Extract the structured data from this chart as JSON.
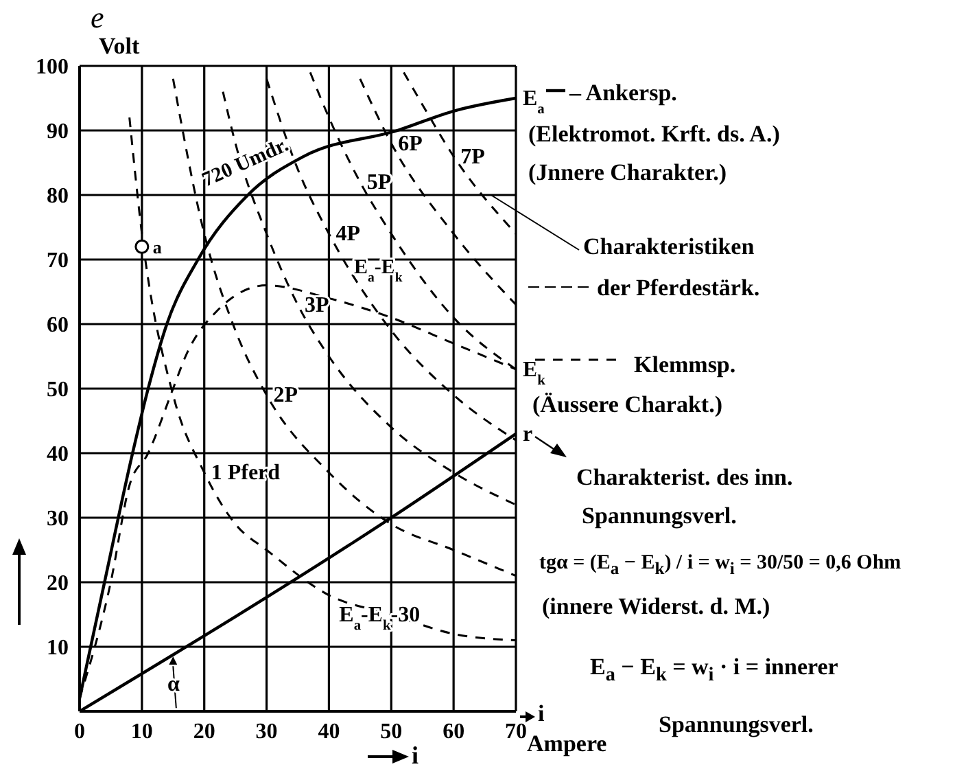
{
  "chart_data": {
    "type": "line",
    "xlabel": "i",
    "ylabel": "e",
    "xlim": [
      0,
      70
    ],
    "ylim": [
      0,
      100
    ],
    "xticks": [
      0,
      10,
      20,
      30,
      40,
      50,
      60,
      70
    ],
    "yticks": [
      {
        "value": 0,
        "label": null
      },
      10,
      20,
      30,
      40,
      50,
      60,
      70,
      80,
      90,
      100
    ],
    "grid": true,
    "legend": "right",
    "series": [
      {
        "name": "E$_{a}$",
        "color": "#000000",
        "line_style": "solid",
        "x": [
          0,
          4,
          8.5,
          11,
          14,
          19,
          27,
          36,
          51,
          60,
          70
        ],
        "values": [
          2,
          20,
          40,
          50,
          60,
          70,
          80,
          86,
          90,
          93,
          95
        ]
      },
      {
        "name": "E$_{k}$",
        "color": "#000000",
        "line_style": "dashed",
        "x": [
          0,
          5,
          8,
          11,
          15,
          17,
          22,
          30,
          40,
          50,
          60,
          70
        ],
        "values": [
          2,
          20,
          35,
          40,
          50,
          55,
          62,
          66,
          64,
          61,
          57,
          53
        ]
      },
      {
        "name": "r",
        "color": "#000000",
        "line_style": "solid",
        "x": [
          0,
          50,
          70
        ],
        "values": [
          0,
          30,
          43
        ]
      },
      {
        "name": "1 Pferd",
        "color": "#000000",
        "line_style": "dashed",
        "x": [
          8,
          10,
          15,
          20,
          25,
          30,
          40,
          50,
          60,
          70
        ],
        "values": [
          92,
          74,
          49,
          37,
          29,
          25,
          18,
          15,
          12,
          11
        ]
      },
      {
        "name": "2P",
        "color": "#000000",
        "line_style": "dashed",
        "x": [
          15,
          20,
          25,
          30,
          40,
          50,
          60,
          70
        ],
        "values": [
          98,
          74,
          59,
          49,
          37,
          29,
          25,
          21
        ]
      },
      {
        "name": "3P",
        "color": "#000000",
        "line_style": "dashed",
        "x": [
          23,
          25,
          30,
          35,
          40,
          50,
          60,
          70
        ],
        "values": [
          96,
          88,
          74,
          63,
          55,
          44,
          37,
          32
        ]
      },
      {
        "name": "4P",
        "color": "#000000",
        "line_style": "dashed",
        "x": [
          30,
          35,
          40,
          50,
          60,
          70
        ],
        "values": [
          98,
          84,
          74,
          59,
          49,
          42
        ]
      },
      {
        "name": "5P",
        "color": "#000000",
        "line_style": "dashed",
        "x": [
          37,
          40,
          45,
          50,
          60,
          70
        ],
        "values": [
          99,
          92,
          82,
          74,
          61,
          53
        ]
      },
      {
        "name": "6P",
        "color": "#000000",
        "line_style": "dashed",
        "x": [
          45,
          50,
          60,
          70
        ],
        "values": [
          98,
          88,
          74,
          63
        ]
      },
      {
        "name": "7P",
        "color": "#000000",
        "line_style": "dashed",
        "x": [
          52,
          55,
          60,
          70
        ],
        "values": [
          99,
          94,
          86,
          74
        ]
      },
      {
        "type": "scatter",
        "marker": "circle",
        "color": "#000000",
        "x": [
          10
        ],
        "values": [
          72
        ]
      }
    ],
    "annotations": [
      "Volt",
      "Ampere",
      "i",
      "– Ankersp.",
      "(Elektromot. Krft. ds. A.)",
      "(Jnnere Charakter.)",
      {
        "text": "Charakteristiken",
        "x": 66,
        "y": 80
      },
      "der Pferdestärk.",
      "Klemmsp.",
      "(Äussere Charakt.)",
      "Charakterist. des inn.",
      "Spannungsverl.",
      "tgα = (E$_{a}$ − E$_{k}$) / i = w$_{i}$ = 30/50 = 0,6 Ohm",
      "(innere Widerst. d. M.)",
      "E$_{a}$ − E$_{k}$ = w$_{i}$ · i = innerer",
      "Spannungsverl.",
      {
        "text": "a",
        "x": 10,
        "y": 72
      },
      "720 Umdr.",
      "E$_{a}$-E$_{k}$",
      {
        "text": "E$_{a}$-E$_{k}$-30",
        "x": 50,
        "y": 15
      },
      "α"
    ]
  }
}
